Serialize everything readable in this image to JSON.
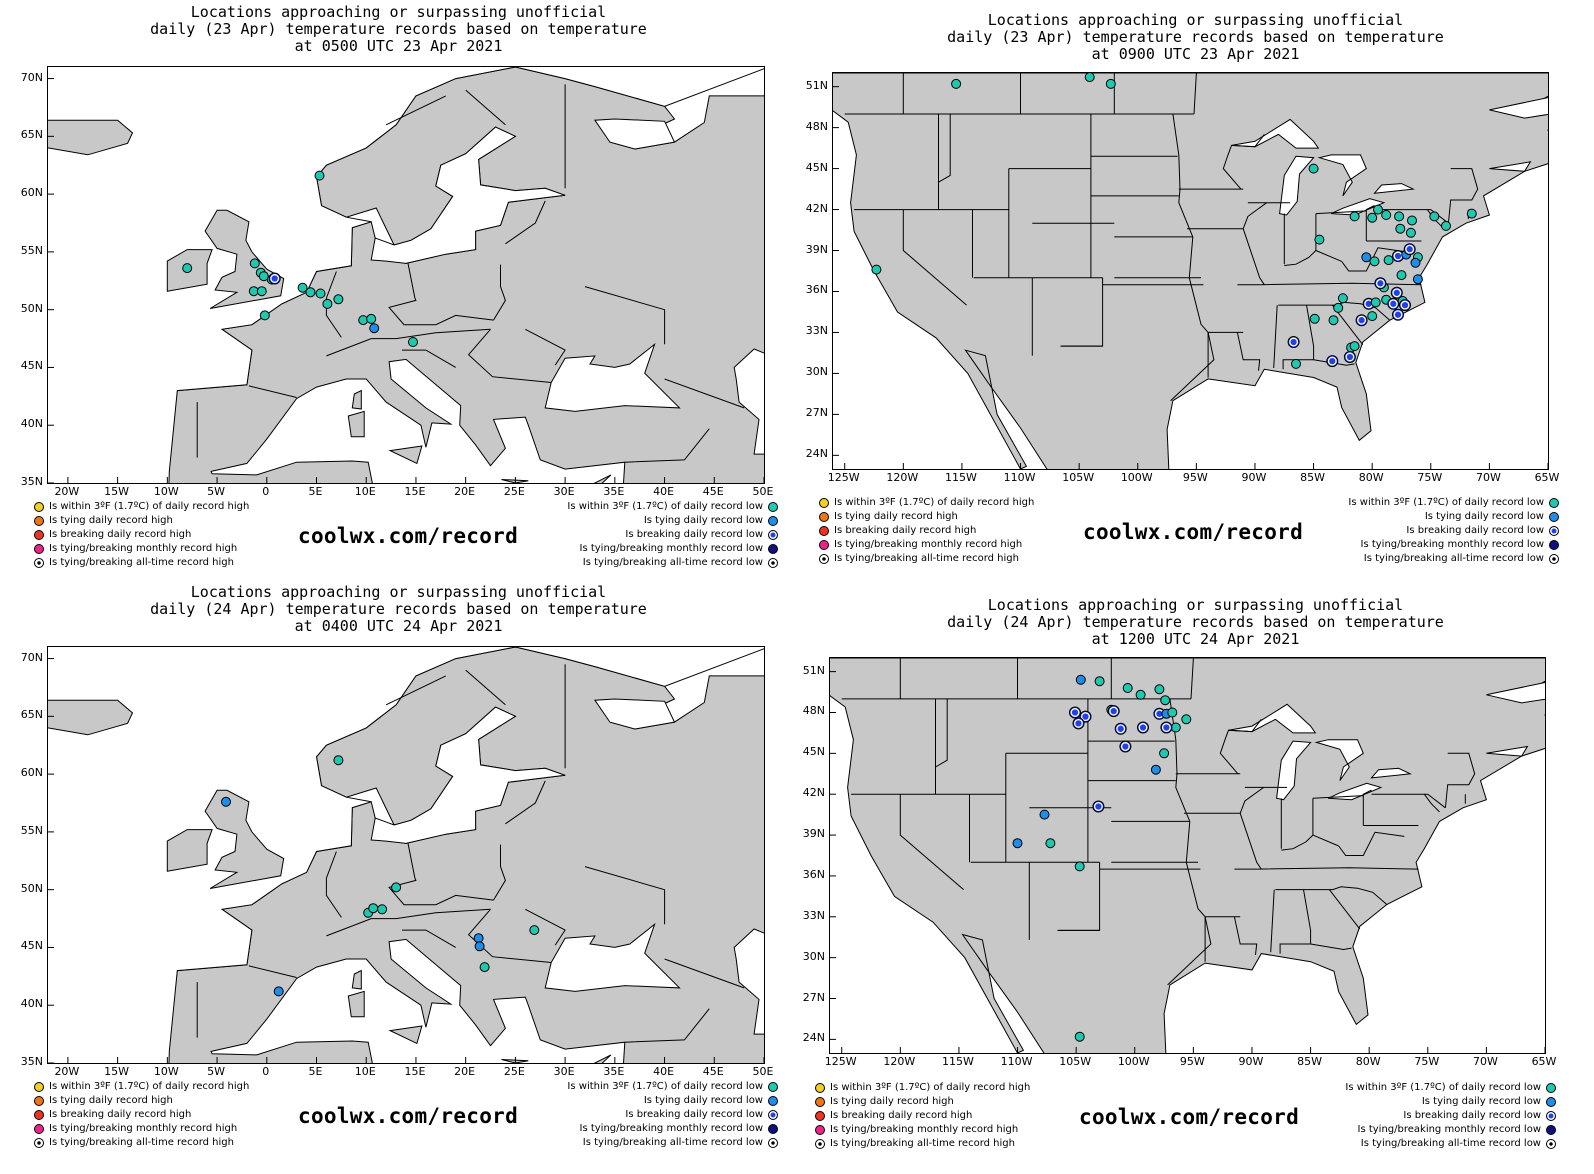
{
  "legend_colors": {
    "within_high": "#f0d020",
    "tying_high": "#ee7711",
    "breaking_high": "#ee3322",
    "monthly_high": "#ee2288",
    "within_low": "#20c8b0",
    "tying_low": "#1e8ee8",
    "breaking_low": "#2040e8",
    "monthly_low": "#101080"
  },
  "land_color": "#c8c8c8",
  "panels": [
    {
      "title": "Locations approaching or surpassing unofficial\ndaily (23 Apr) temperature records based on temperature\nat 0500 UTC 23 Apr 2021",
      "region": "europe",
      "lat_labels": [
        "70N",
        "65N",
        "60N",
        "55N",
        "50N",
        "45N",
        "40N",
        "35N"
      ],
      "lon_labels": [
        "20W",
        "15W",
        "10W",
        "5W",
        "0",
        "5E",
        "10E",
        "15E",
        "20E",
        "25E",
        "30E",
        "35E",
        "40E",
        "45E",
        "50E"
      ],
      "legend_left": [
        "Is within 3ºF (1.7ºC) of daily record high",
        "Is tying daily record high",
        "Is breaking daily record high",
        "Is tying/breaking monthly record high",
        "Is tying/breaking all-time record high"
      ],
      "legend_right": [
        "Is within 3ºF (1.7ºC) of daily record low",
        "Is tying daily record low",
        "Is breaking daily record low",
        "Is tying/breaking monthly record low",
        "Is tying/breaking all-time record low"
      ],
      "site": "coolwx.com/record",
      "points": [
        {
          "lon": 5.3,
          "lat": 61.6,
          "kind": "within_low"
        },
        {
          "lon": -8.0,
          "lat": 53.6,
          "kind": "within_low"
        },
        {
          "lon": -1.2,
          "lat": 54.0,
          "kind": "within_low"
        },
        {
          "lon": -0.6,
          "lat": 53.2,
          "kind": "within_low"
        },
        {
          "lon": -0.3,
          "lat": 52.9,
          "kind": "within_low"
        },
        {
          "lon": 0.5,
          "lat": 52.6,
          "kind": "within_low"
        },
        {
          "lon": 0.8,
          "lat": 52.7,
          "kind": "breaking_low"
        },
        {
          "lon": -1.3,
          "lat": 51.6,
          "kind": "within_low"
        },
        {
          "lon": -0.5,
          "lat": 51.6,
          "kind": "within_low"
        },
        {
          "lon": -0.2,
          "lat": 49.5,
          "kind": "within_low"
        },
        {
          "lon": 3.6,
          "lat": 51.9,
          "kind": "within_low"
        },
        {
          "lon": 4.4,
          "lat": 51.5,
          "kind": "within_low"
        },
        {
          "lon": 5.4,
          "lat": 51.4,
          "kind": "within_low"
        },
        {
          "lon": 6.1,
          "lat": 50.5,
          "kind": "within_low"
        },
        {
          "lon": 7.2,
          "lat": 50.9,
          "kind": "within_low"
        },
        {
          "lon": 9.7,
          "lat": 49.1,
          "kind": "within_low"
        },
        {
          "lon": 10.5,
          "lat": 49.2,
          "kind": "within_low"
        },
        {
          "lon": 10.8,
          "lat": 48.4,
          "kind": "tying_low"
        },
        {
          "lon": 14.7,
          "lat": 47.2,
          "kind": "within_low"
        }
      ]
    },
    {
      "title": "Locations approaching or surpassing unofficial\ndaily (23 Apr) temperature records based on temperature\nat 0900 UTC 23 Apr 2021",
      "region": "usa",
      "lat_labels": [
        "51N",
        "48N",
        "45N",
        "42N",
        "39N",
        "36N",
        "33N",
        "30N",
        "27N",
        "24N"
      ],
      "lon_labels": [
        "125W",
        "120W",
        "115W",
        "110W",
        "105W",
        "100W",
        "95W",
        "90W",
        "85W",
        "80W",
        "75W",
        "70W",
        "65W"
      ],
      "legend_left": [
        "Is within 3ºF (1.7ºC) of daily record high",
        "Is tying daily record high",
        "Is breaking daily record high",
        "Is tying/breaking monthly record high",
        "Is tying/breaking all-time record high"
      ],
      "legend_right": [
        "Is within 3ºF (1.7ºC) of daily record low",
        "Is tying daily record low",
        "Is breaking daily record low",
        "Is tying/breaking monthly record low",
        "Is tying/breaking all-time record low"
      ],
      "site": "coolwx.com/record",
      "points": [
        {
          "lon": -115.5,
          "lat": 51.2,
          "kind": "within_low"
        },
        {
          "lon": -104.1,
          "lat": 51.7,
          "kind": "within_low"
        },
        {
          "lon": -102.3,
          "lat": 51.2,
          "kind": "within_low"
        },
        {
          "lon": -122.3,
          "lat": 37.6,
          "kind": "within_low"
        },
        {
          "lon": -85.0,
          "lat": 45.0,
          "kind": "within_low"
        },
        {
          "lon": -81.5,
          "lat": 41.5,
          "kind": "within_low"
        },
        {
          "lon": -80.0,
          "lat": 41.4,
          "kind": "within_low"
        },
        {
          "lon": -79.5,
          "lat": 42.0,
          "kind": "within_low"
        },
        {
          "lon": -78.8,
          "lat": 41.6,
          "kind": "within_low"
        },
        {
          "lon": -77.7,
          "lat": 41.5,
          "kind": "within_low"
        },
        {
          "lon": -76.6,
          "lat": 41.2,
          "kind": "within_low"
        },
        {
          "lon": -74.7,
          "lat": 41.5,
          "kind": "within_low"
        },
        {
          "lon": -73.7,
          "lat": 40.8,
          "kind": "within_low"
        },
        {
          "lon": -71.5,
          "lat": 41.7,
          "kind": "within_low"
        },
        {
          "lon": -84.5,
          "lat": 39.8,
          "kind": "within_low"
        },
        {
          "lon": -77.6,
          "lat": 40.6,
          "kind": "within_low"
        },
        {
          "lon": -76.7,
          "lat": 40.3,
          "kind": "within_low"
        },
        {
          "lon": -80.5,
          "lat": 38.5,
          "kind": "tying_low"
        },
        {
          "lon": -79.8,
          "lat": 38.2,
          "kind": "within_low"
        },
        {
          "lon": -78.6,
          "lat": 38.3,
          "kind": "within_low"
        },
        {
          "lon": -77.8,
          "lat": 38.6,
          "kind": "breaking_low"
        },
        {
          "lon": -77.1,
          "lat": 38.7,
          "kind": "tying_low"
        },
        {
          "lon": -76.8,
          "lat": 39.1,
          "kind": "breaking_low"
        },
        {
          "lon": -76.1,
          "lat": 38.5,
          "kind": "within_low"
        },
        {
          "lon": -76.3,
          "lat": 38.1,
          "kind": "tying_low"
        },
        {
          "lon": -76.1,
          "lat": 36.9,
          "kind": "tying_low"
        },
        {
          "lon": -77.5,
          "lat": 37.2,
          "kind": "within_low"
        },
        {
          "lon": -79.0,
          "lat": 36.3,
          "kind": "within_low"
        },
        {
          "lon": -79.3,
          "lat": 36.6,
          "kind": "breaking_low"
        },
        {
          "lon": -82.5,
          "lat": 35.5,
          "kind": "within_low"
        },
        {
          "lon": -82.9,
          "lat": 34.8,
          "kind": "within_low"
        },
        {
          "lon": -80.3,
          "lat": 35.1,
          "kind": "breaking_low"
        },
        {
          "lon": -79.7,
          "lat": 35.2,
          "kind": "within_low"
        },
        {
          "lon": -78.8,
          "lat": 35.4,
          "kind": "within_low"
        },
        {
          "lon": -78.2,
          "lat": 35.1,
          "kind": "breaking_low"
        },
        {
          "lon": -77.4,
          "lat": 35.3,
          "kind": "within_low"
        },
        {
          "lon": -77.9,
          "lat": 35.9,
          "kind": "breaking_low"
        },
        {
          "lon": -77.2,
          "lat": 35.0,
          "kind": "breaking_low"
        },
        {
          "lon": -77.8,
          "lat": 34.3,
          "kind": "breaking_low"
        },
        {
          "lon": -80.0,
          "lat": 34.2,
          "kind": "within_low"
        },
        {
          "lon": -80.9,
          "lat": 33.9,
          "kind": "breaking_low"
        },
        {
          "lon": -83.3,
          "lat": 33.9,
          "kind": "within_low"
        },
        {
          "lon": -84.9,
          "lat": 34.0,
          "kind": "within_low"
        },
        {
          "lon": -86.7,
          "lat": 32.3,
          "kind": "breaking_low"
        },
        {
          "lon": -81.8,
          "lat": 31.9,
          "kind": "within_low"
        },
        {
          "lon": -81.5,
          "lat": 32.0,
          "kind": "within_low"
        },
        {
          "lon": -81.9,
          "lat": 31.2,
          "kind": "breaking_low"
        },
        {
          "lon": -83.4,
          "lat": 30.9,
          "kind": "breaking_low"
        },
        {
          "lon": -86.5,
          "lat": 30.7,
          "kind": "within_low"
        }
      ]
    },
    {
      "title": "Locations approaching or surpassing unofficial\ndaily (24 Apr) temperature records based on temperature\nat 0400 UTC 24 Apr 2021",
      "region": "europe",
      "lat_labels": [
        "70N",
        "65N",
        "60N",
        "55N",
        "50N",
        "45N",
        "40N",
        "35N"
      ],
      "lon_labels": [
        "20W",
        "15W",
        "10W",
        "5W",
        "0",
        "5E",
        "10E",
        "15E",
        "20E",
        "25E",
        "30E",
        "35E",
        "40E",
        "45E",
        "50E"
      ],
      "legend_left": [
        "Is within 3ºF (1.7ºC) of daily record high",
        "Is tying daily record high",
        "Is breaking daily record high",
        "Is tying/breaking monthly record high",
        "Is tying/breaking all-time record high"
      ],
      "legend_right": [
        "Is within 3ºF (1.7ºC) of daily record low",
        "Is tying daily record low",
        "Is breaking daily record low",
        "Is tying/breaking monthly record low",
        "Is tying/breaking all-time record low"
      ],
      "site": "coolwx.com/record",
      "points": [
        {
          "lon": 7.2,
          "lat": 61.2,
          "kind": "within_low"
        },
        {
          "lon": -4.1,
          "lat": 57.6,
          "kind": "tying_low"
        },
        {
          "lon": 13.0,
          "lat": 50.2,
          "kind": "within_low"
        },
        {
          "lon": 10.2,
          "lat": 48.0,
          "kind": "within_low"
        },
        {
          "lon": 10.7,
          "lat": 48.4,
          "kind": "within_low"
        },
        {
          "lon": 11.6,
          "lat": 48.3,
          "kind": "within_low"
        },
        {
          "lon": 21.3,
          "lat": 45.8,
          "kind": "tying_low"
        },
        {
          "lon": 21.4,
          "lat": 45.1,
          "kind": "tying_low"
        },
        {
          "lon": 21.9,
          "lat": 43.3,
          "kind": "within_low"
        },
        {
          "lon": 26.9,
          "lat": 46.5,
          "kind": "within_low"
        },
        {
          "lon": 1.2,
          "lat": 41.2,
          "kind": "tying_low"
        }
      ]
    },
    {
      "title": "Locations approaching or surpassing unofficial\ndaily (24 Apr) temperature records based on temperature\nat 1200 UTC 24 Apr 2021",
      "region": "usa",
      "lat_labels": [
        "51N",
        "48N",
        "45N",
        "42N",
        "39N",
        "36N",
        "33N",
        "30N",
        "27N",
        "24N"
      ],
      "lon_labels": [
        "125W",
        "120W",
        "115W",
        "110W",
        "105W",
        "100W",
        "95W",
        "90W",
        "85W",
        "80W",
        "75W",
        "70W",
        "65W"
      ],
      "legend_left": [
        "Is within 3ºF (1.7ºC) of daily record high",
        "Is tying daily record high",
        "Is breaking daily record high",
        "Is tying/breaking monthly record high",
        "Is tying/breaking all-time record high"
      ],
      "legend_right": [
        "Is within 3ºF (1.7ºC) of daily record low",
        "Is tying daily record low",
        "Is breaking daily record low",
        "Is tying/breaking monthly record low",
        "Is tying/breaking all-time record low"
      ],
      "site": "coolwx.com/record",
      "points": [
        {
          "lon": -104.6,
          "lat": 50.4,
          "kind": "tying_low"
        },
        {
          "lon": -103.0,
          "lat": 50.3,
          "kind": "within_low"
        },
        {
          "lon": -100.6,
          "lat": 49.8,
          "kind": "within_low"
        },
        {
          "lon": -99.5,
          "lat": 49.3,
          "kind": "within_low"
        },
        {
          "lon": -97.9,
          "lat": 49.7,
          "kind": "within_low"
        },
        {
          "lon": -97.4,
          "lat": 48.9,
          "kind": "within_low"
        },
        {
          "lon": -102.0,
          "lat": 48.2,
          "kind": "within_low"
        },
        {
          "lon": -101.8,
          "lat": 48.1,
          "kind": "breaking_low"
        },
        {
          "lon": -105.1,
          "lat": 48.0,
          "kind": "breaking_low"
        },
        {
          "lon": -104.2,
          "lat": 47.7,
          "kind": "breaking_low"
        },
        {
          "lon": -104.8,
          "lat": 47.2,
          "kind": "breaking_low"
        },
        {
          "lon": -101.2,
          "lat": 46.8,
          "kind": "breaking_low"
        },
        {
          "lon": -99.3,
          "lat": 46.9,
          "kind": "breaking_low"
        },
        {
          "lon": -97.9,
          "lat": 47.9,
          "kind": "breaking_low"
        },
        {
          "lon": -97.3,
          "lat": 47.9,
          "kind": "tying_low"
        },
        {
          "lon": -96.8,
          "lat": 48.0,
          "kind": "within_low"
        },
        {
          "lon": -95.6,
          "lat": 47.5,
          "kind": "within_low"
        },
        {
          "lon": -96.5,
          "lat": 46.9,
          "kind": "within_low"
        },
        {
          "lon": -97.3,
          "lat": 46.9,
          "kind": "breaking_low"
        },
        {
          "lon": -100.8,
          "lat": 45.5,
          "kind": "breaking_low"
        },
        {
          "lon": -97.5,
          "lat": 45.0,
          "kind": "within_low"
        },
        {
          "lon": -98.2,
          "lat": 43.8,
          "kind": "tying_low"
        },
        {
          "lon": -103.1,
          "lat": 41.1,
          "kind": "breaking_low"
        },
        {
          "lon": -107.7,
          "lat": 40.5,
          "kind": "tying_low"
        },
        {
          "lon": -110.0,
          "lat": 38.4,
          "kind": "tying_low"
        },
        {
          "lon": -107.2,
          "lat": 38.4,
          "kind": "within_low"
        },
        {
          "lon": -104.7,
          "lat": 36.7,
          "kind": "within_low"
        },
        {
          "lon": -104.7,
          "lat": 24.2,
          "kind": "within_low"
        }
      ]
    }
  ]
}
